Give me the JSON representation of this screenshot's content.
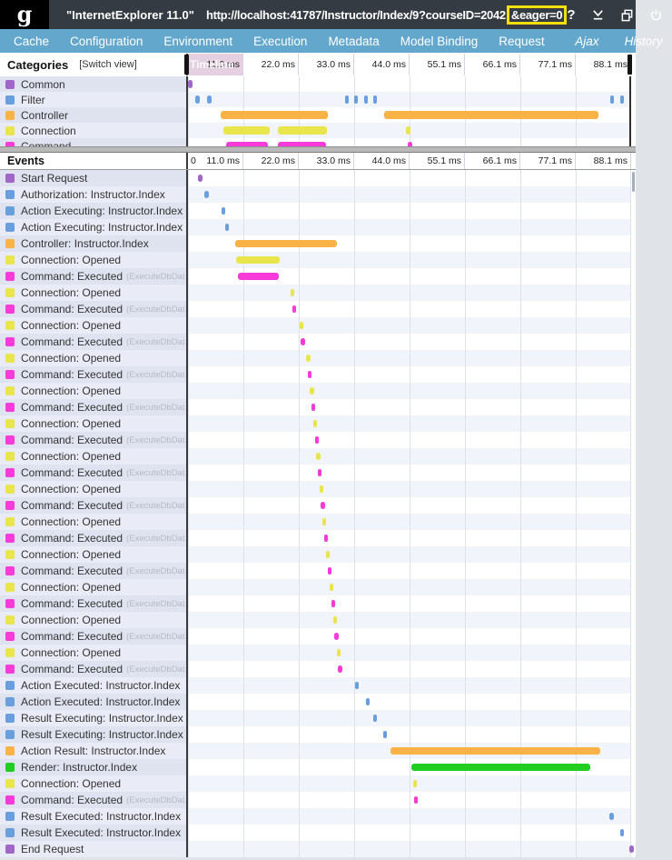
{
  "header": {
    "logo_text": "g",
    "browser_label": "\"InternetExplorer 11.0\"",
    "url": "http://localhost:41787/Instructor/Index/9?courseID=2042",
    "url_highlight": "&eager=0",
    "help_label": "?",
    "icons": [
      "help-icon",
      "minimize-icon",
      "popout-icon",
      "power-icon"
    ],
    "highlight_border_color": "#f2df0c"
  },
  "nav": {
    "tabs": [
      "Cache",
      "Configuration",
      "Environment",
      "Execution",
      "Metadata",
      "Model Binding",
      "Request"
    ],
    "right_tabs": [
      "Ajax",
      "History"
    ],
    "bar_color": "#63a8cc"
  },
  "timeline": {
    "tick_labels": [
      "11.0 ms",
      "22.0 ms",
      "33.0 ms",
      "44.0 ms",
      "55.1 ms",
      "66.1 ms",
      "77.1 ms",
      "88.1 ms"
    ],
    "origin_label": "0",
    "ghost_label": "Timeline",
    "ms_per_column": 11.0,
    "ms_max": 88.1
  },
  "colors": {
    "request": "#a067c9",
    "filter": "#689fdc",
    "controller": "#f8b246",
    "connection": "#e9e54d",
    "command": "#f73bd8",
    "render": "#21cd21"
  },
  "categories": {
    "title": "Categories",
    "switch_view": "[Switch view]",
    "rows": [
      {
        "label": "Common",
        "cat": "request",
        "bars": [
          [
            0,
            0.9
          ]
        ]
      },
      {
        "label": "Filter",
        "cat": "filter",
        "bars": [
          [
            1.5,
            2.4
          ],
          [
            3.7,
            4.6
          ],
          [
            31.2,
            32.0
          ],
          [
            33.0,
            33.8
          ],
          [
            34.9,
            35.7
          ],
          [
            36.8,
            37.6
          ],
          [
            83.8,
            84.6
          ],
          [
            85.8,
            86.6
          ]
        ]
      },
      {
        "label": "Controller",
        "cat": "controller",
        "bars": [
          [
            6.5,
            27.8
          ],
          [
            38.9,
            81.5
          ]
        ]
      },
      {
        "label": "Connection",
        "cat": "connection",
        "bars": [
          [
            7.0,
            16.2
          ],
          [
            17.8,
            27.6
          ],
          [
            43.3,
            44.2
          ]
        ]
      },
      {
        "label": "Command",
        "cat": "command",
        "bars": [
          [
            7.6,
            15.9
          ],
          [
            17.9,
            27.5
          ],
          [
            43.6,
            44.5
          ]
        ]
      }
    ]
  },
  "events": {
    "title": "Events",
    "command_suffix": "(ExecuteDbDat…",
    "rows": [
      {
        "label": "Start Request",
        "cat": "request",
        "start": 2.0,
        "end": 2.9
      },
      {
        "label": "Authorization: Instructor.Index",
        "cat": "filter",
        "start": 3.3,
        "end": 4.1
      },
      {
        "label": "Action Executing: Instructor.Index",
        "cat": "filter",
        "start": 6.6,
        "end": 7.4
      },
      {
        "label": "Action Executing: Instructor.Index",
        "cat": "filter",
        "start": 7.4,
        "end": 8.2
      },
      {
        "label": "Controller: Instructor.Index",
        "cat": "controller",
        "start": 9.3,
        "end": 29.6
      },
      {
        "label": "Connection: Opened",
        "cat": "connection",
        "start": 9.6,
        "end": 18.2
      },
      {
        "label": "Command: Executed",
        "cat": "command",
        "start": 9.9,
        "end": 18.1,
        "suffix": true
      },
      {
        "label": "Connection: Opened",
        "cat": "connection",
        "start": 20.4,
        "end": 21.2
      },
      {
        "label": "Command: Executed",
        "cat": "command",
        "start": 20.7,
        "end": 21.5,
        "suffix": true
      },
      {
        "label": "Connection: Opened",
        "cat": "connection",
        "start": 22.1,
        "end": 22.9
      },
      {
        "label": "Command: Executed",
        "cat": "command",
        "start": 22.4,
        "end": 23.2,
        "suffix": true
      },
      {
        "label": "Connection: Opened",
        "cat": "connection",
        "start": 23.5,
        "end": 24.3
      },
      {
        "label": "Command: Executed",
        "cat": "command",
        "start": 23.8,
        "end": 24.6,
        "suffix": true
      },
      {
        "label": "Connection: Opened",
        "cat": "connection",
        "start": 24.2,
        "end": 25.0
      },
      {
        "label": "Command: Executed",
        "cat": "command",
        "start": 24.5,
        "end": 25.3,
        "suffix": true
      },
      {
        "label": "Connection: Opened",
        "cat": "connection",
        "start": 24.9,
        "end": 25.7
      },
      {
        "label": "Command: Executed",
        "cat": "command",
        "start": 25.2,
        "end": 26.0,
        "suffix": true
      },
      {
        "label": "Connection: Opened",
        "cat": "connection",
        "start": 25.5,
        "end": 26.3
      },
      {
        "label": "Command: Executed",
        "cat": "command",
        "start": 25.8,
        "end": 26.6,
        "suffix": true
      },
      {
        "label": "Connection: Opened",
        "cat": "connection",
        "start": 26.1,
        "end": 26.9
      },
      {
        "label": "Command: Executed",
        "cat": "command",
        "start": 26.4,
        "end": 27.2,
        "suffix": true
      },
      {
        "label": "Connection: Opened",
        "cat": "connection",
        "start": 26.7,
        "end": 27.5
      },
      {
        "label": "Command: Executed",
        "cat": "command",
        "start": 27.0,
        "end": 27.8,
        "suffix": true
      },
      {
        "label": "Connection: Opened",
        "cat": "connection",
        "start": 27.4,
        "end": 28.2
      },
      {
        "label": "Command: Executed",
        "cat": "command",
        "start": 27.7,
        "end": 28.5,
        "suffix": true
      },
      {
        "label": "Connection: Opened",
        "cat": "connection",
        "start": 28.1,
        "end": 28.9
      },
      {
        "label": "Command: Executed",
        "cat": "command",
        "start": 28.4,
        "end": 29.2,
        "suffix": true
      },
      {
        "label": "Connection: Opened",
        "cat": "connection",
        "start": 28.8,
        "end": 29.6
      },
      {
        "label": "Command: Executed",
        "cat": "command",
        "start": 29.1,
        "end": 29.9,
        "suffix": true
      },
      {
        "label": "Connection: Opened",
        "cat": "connection",
        "start": 29.5,
        "end": 30.3
      },
      {
        "label": "Command: Executed",
        "cat": "command",
        "start": 29.8,
        "end": 30.6,
        "suffix": true
      },
      {
        "label": "Action Executed: Instructor.Index",
        "cat": "filter",
        "start": 33.1,
        "end": 33.9
      },
      {
        "label": "Action Executed: Instructor.Index",
        "cat": "filter",
        "start": 35.3,
        "end": 36.1
      },
      {
        "label": "Result Executing: Instructor.Index",
        "cat": "filter",
        "start": 36.8,
        "end": 37.6
      },
      {
        "label": "Result Executing: Instructor.Index",
        "cat": "filter",
        "start": 38.7,
        "end": 39.5
      },
      {
        "label": "Action Result: Instructor.Index",
        "cat": "controller",
        "start": 40.2,
        "end": 81.9
      },
      {
        "label": "Render: Instructor.Index",
        "cat": "render",
        "start": 44.3,
        "end": 79.9
      },
      {
        "label": "Connection: Opened",
        "cat": "connection",
        "start": 44.7,
        "end": 45.5
      },
      {
        "label": "Command: Executed",
        "cat": "command",
        "start": 44.9,
        "end": 45.7,
        "suffix": true
      },
      {
        "label": "Result Executed: Instructor.Index",
        "cat": "filter",
        "start": 83.7,
        "end": 84.5
      },
      {
        "label": "Result Executed: Instructor.Index",
        "cat": "filter",
        "start": 85.8,
        "end": 86.6
      },
      {
        "label": "End Request",
        "cat": "request",
        "start": 87.6,
        "end": 88.6
      }
    ]
  }
}
